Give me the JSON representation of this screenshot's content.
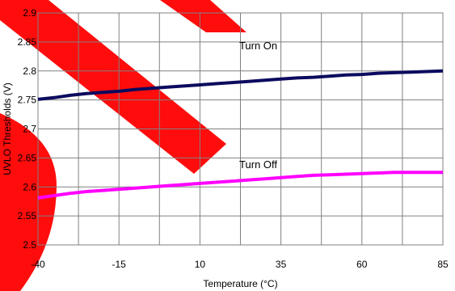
{
  "chart_data": {
    "type": "line",
    "xlabel": "Temperature (°C)",
    "ylabel": "UVLO Thresholds (V)",
    "xlim": [
      -40,
      85
    ],
    "ylim": [
      2.5,
      2.9
    ],
    "x_ticks": [
      "-40",
      "-15",
      "10",
      "35",
      "60",
      "85"
    ],
    "x_tick_values": [
      -40,
      -15,
      10,
      35,
      60,
      85
    ],
    "y_ticks": [
      "2.5",
      "2.55",
      "2.6",
      "2.65",
      "2.7",
      "2.75",
      "2.8",
      "2.85",
      "2.9"
    ],
    "y_tick_values": [
      2.5,
      2.55,
      2.6,
      2.65,
      2.7,
      2.75,
      2.8,
      2.85,
      2.9
    ],
    "grid": true,
    "x_grid_values": [
      -40,
      -27.5,
      -15,
      -2.5,
      10,
      22.5,
      35,
      47.5,
      60,
      72.5,
      85
    ],
    "annotations": [
      {
        "text": "Turn On",
        "x": 28,
        "y": 2.843
      },
      {
        "text": "Turn Off",
        "x": 28,
        "y": 2.638
      }
    ],
    "series": [
      {
        "color": "#0b0b5e",
        "x": [
          -40,
          -35,
          -30,
          -25,
          -20,
          -15,
          -10,
          -5,
          0,
          5,
          10,
          15,
          20,
          25,
          30,
          35,
          40,
          45,
          50,
          55,
          60,
          65,
          70,
          75,
          80,
          85
        ],
        "values": [
          2.751,
          2.754,
          2.758,
          2.761,
          2.763,
          2.765,
          2.768,
          2.77,
          2.772,
          2.774,
          2.776,
          2.778,
          2.78,
          2.782,
          2.784,
          2.786,
          2.788,
          2.789,
          2.791,
          2.793,
          2.794,
          2.796,
          2.797,
          2.798,
          2.799,
          2.8
        ]
      },
      {
        "color": "#ff00ff",
        "x": [
          -40,
          -35,
          -30,
          -25,
          -20,
          -15,
          -10,
          -5,
          0,
          5,
          10,
          15,
          20,
          25,
          30,
          35,
          40,
          45,
          50,
          55,
          60,
          65,
          70,
          75,
          80,
          85
        ],
        "values": [
          2.581,
          2.585,
          2.589,
          2.592,
          2.594,
          2.596,
          2.598,
          2.6,
          2.602,
          2.604,
          2.606,
          2.608,
          2.61,
          2.612,
          2.614,
          2.616,
          2.618,
          2.62,
          2.621,
          2.622,
          2.623,
          2.624,
          2.625,
          2.625,
          2.625,
          2.625
        ]
      }
    ]
  },
  "watermark": {
    "color": "#ff0000",
    "opacity": 0.95
  }
}
